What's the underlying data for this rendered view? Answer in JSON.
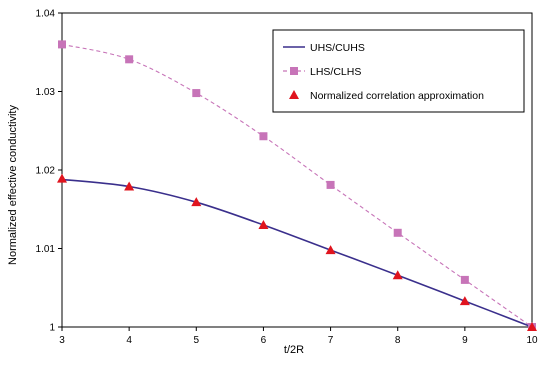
{
  "chart_data": {
    "type": "line",
    "title": "",
    "xlabel": "t/2R",
    "ylabel": "Normalized effective conductivity",
    "x": [
      3,
      4,
      5,
      6,
      7,
      8,
      9,
      10
    ],
    "xlim": [
      3,
      10
    ],
    "ylim": [
      1,
      1.04
    ],
    "x_ticks": [
      "3",
      "4",
      "5",
      "6",
      "7",
      "8",
      "9",
      "10"
    ],
    "y_ticks": [
      "1",
      "1.01",
      "1.02",
      "1.03",
      "1.04"
    ],
    "grid": false,
    "legend_position": "top-right",
    "series": [
      {
        "name": "UHS/CUHS",
        "style": "solid-line",
        "color": "#3a2f8c",
        "values": [
          1.0188,
          1.0179,
          1.0159,
          1.013,
          1.0098,
          1.0066,
          1.0033,
          1.0
        ]
      },
      {
        "name": "LHS/CLHS",
        "style": "dashed-line-square-markers",
        "color": "#c774b8",
        "values": [
          1.036,
          1.0341,
          1.0298,
          1.0243,
          1.0181,
          1.012,
          1.006,
          1.0
        ]
      },
      {
        "name": "Normalized correlation approximation",
        "style": "triangle-markers",
        "color": "#e0141e",
        "values": [
          1.0189,
          1.0179,
          1.0159,
          1.013,
          1.0098,
          1.0066,
          1.0033,
          1.0
        ]
      }
    ]
  }
}
